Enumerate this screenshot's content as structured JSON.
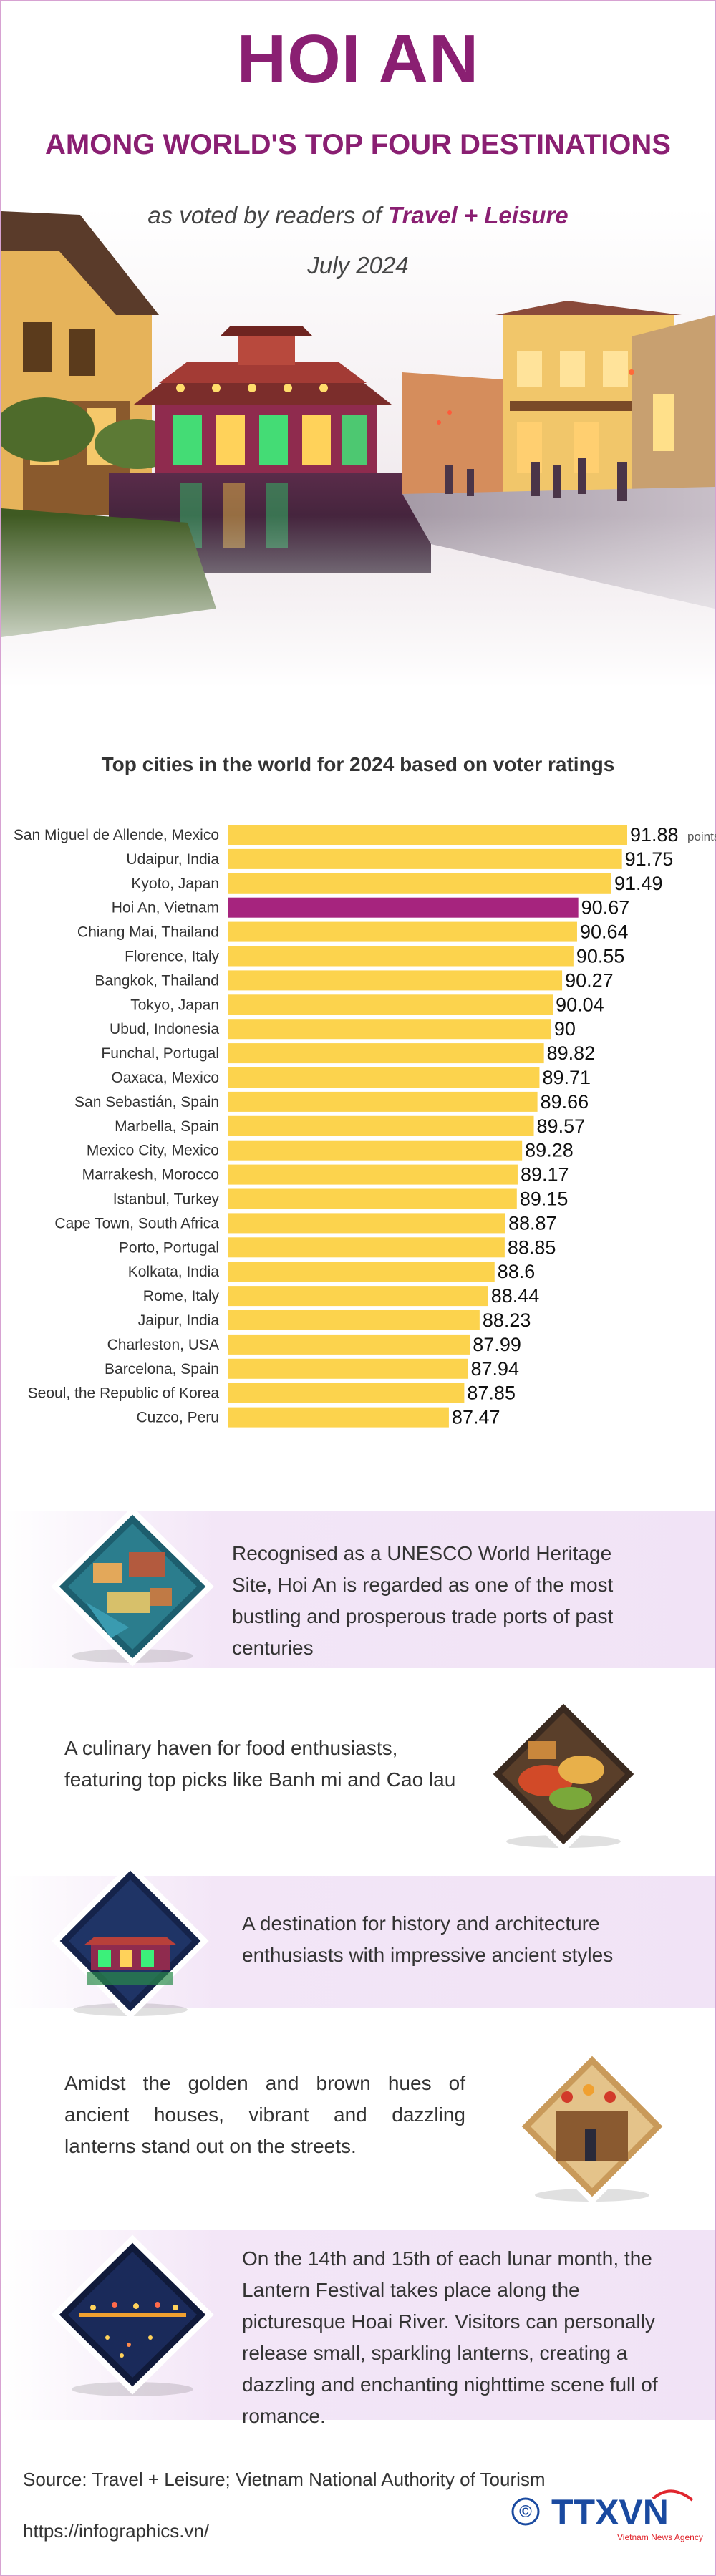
{
  "header": {
    "title": "HOI AN",
    "subtitle": "AMONG WORLD'S TOP FOUR DESTINATIONS",
    "voted_prefix": "as voted by readers of",
    "voted_source": "Travel + Leisure",
    "date": "July 2024"
  },
  "chart_data": {
    "type": "bar",
    "orientation": "horizontal",
    "title": "Top cities in the world for 2024 based on voter ratings",
    "unit": "points",
    "highlight": "Hoi An, Vietnam",
    "colors": {
      "bar": "#fcd34d",
      "highlight": "#a6247e"
    },
    "categories": [
      "San Miguel de Allende, Mexico",
      "Udaipur, India",
      "Kyoto, Japan",
      "Hoi An, Vietnam",
      "Chiang Mai, Thailand",
      "Florence, Italy",
      "Bangkok, Thailand",
      "Tokyo, Japan",
      "Ubud, Indonesia",
      "Funchal, Portugal",
      "Oaxaca, Mexico",
      "San Sebastián, Spain",
      "Marbella, Spain",
      "Mexico City, Mexico",
      "Marrakesh, Morocco",
      "Istanbul, Turkey",
      "Cape Town, South Africa",
      "Porto, Portugal",
      "Kolkata, India",
      "Rome, Italy",
      "Jaipur, India",
      "Charleston, USA",
      "Barcelona, Spain",
      "Seoul, the Republic of Korea",
      "Cuzco, Peru"
    ],
    "values": [
      91.88,
      91.75,
      91.49,
      90.67,
      90.64,
      90.55,
      90.27,
      90.04,
      90,
      89.82,
      89.71,
      89.66,
      89.57,
      89.28,
      89.17,
      89.15,
      88.87,
      88.85,
      88.6,
      88.44,
      88.23,
      87.99,
      87.94,
      87.85,
      87.47
    ],
    "value_labels": [
      "91.88",
      "91.75",
      "91.49",
      "90.67",
      "90.64",
      "90.55",
      "90.27",
      "90.04",
      "90",
      "89.82",
      "89.71",
      "89.66",
      "89.57",
      "89.28",
      "89.17",
      "89.15",
      "88.87",
      "88.85",
      "88.6",
      "88.44",
      "88.23",
      "87.99",
      "87.94",
      "87.85",
      "87.47"
    ]
  },
  "features": [
    {
      "text": "Recognised as a UNESCO World Heritage Site, Hoi An is regarded as one of the most bustling and prosperous trade ports of past centuries",
      "icon": "ancient-town-aerial-icon"
    },
    {
      "text": "A culinary haven for food enthusiasts, featuring top picks like Banh mi and Cao lau",
      "icon": "food-icon"
    },
    {
      "text": "A destination for history and architecture enthusiasts with impressive ancient styles",
      "icon": "bridge-icon"
    },
    {
      "text": "Amidst the golden and brown hues of ancient houses, vibrant and dazzling lanterns stand out on the streets.",
      "icon": "lantern-street-icon"
    },
    {
      "text": "On the 14th and 15th of each lunar month, the Lantern Festival takes place along the picturesque Hoai River. Visitors can personally release small, sparkling lanterns, creating a dazzling and enchanting nighttime scene full of romance.",
      "icon": "lantern-festival-icon"
    }
  ],
  "footer": {
    "source": "Source: Travel + Leisure; Vietnam National Authority of Tourism",
    "url": "https://infographics.vn/",
    "copyright": "©",
    "logo_text": "TTXVN",
    "logo_sub": "Vietnam News Agency"
  }
}
